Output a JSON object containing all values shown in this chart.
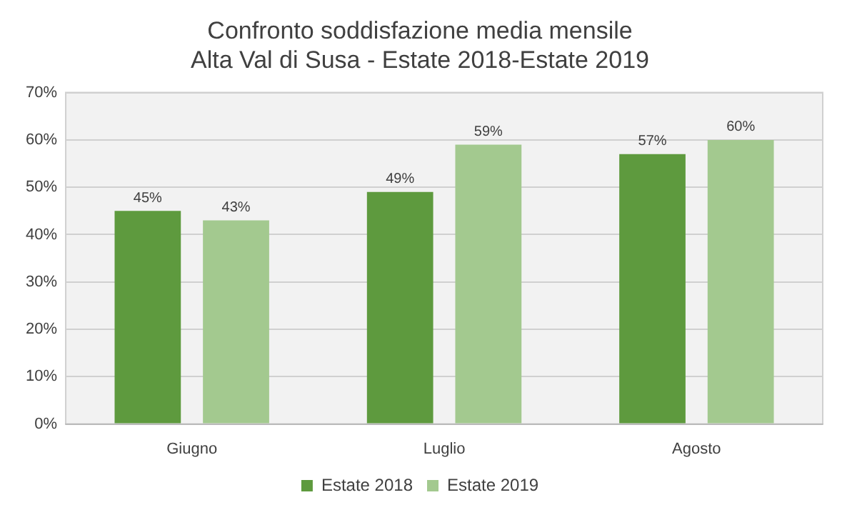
{
  "chart_data": {
    "type": "bar",
    "title": "Confronto soddisfazione media mensile\nAlta Val di Susa - Estate 2018-Estate 2019",
    "categories": [
      "Giugno",
      "Luglio",
      "Agosto"
    ],
    "series": [
      {
        "name": "Estate 2018",
        "color": "#5e9a3e",
        "values": [
          45,
          49,
          57
        ],
        "value_labels": [
          "45%",
          "49%",
          "57%"
        ]
      },
      {
        "name": "Estate 2019",
        "color": "#a3c98f",
        "values": [
          43,
          59,
          60
        ],
        "value_labels": [
          "43%",
          "59%",
          "60%"
        ]
      }
    ],
    "ylim": [
      0,
      70
    ],
    "yticks": [
      {
        "value": 0,
        "label": "0%"
      },
      {
        "value": 10,
        "label": "10%"
      },
      {
        "value": 20,
        "label": "20%"
      },
      {
        "value": 30,
        "label": "30%"
      },
      {
        "value": 40,
        "label": "40%"
      },
      {
        "value": 50,
        "label": "50%"
      },
      {
        "value": 60,
        "label": "60%"
      },
      {
        "value": 70,
        "label": "70%"
      }
    ],
    "grid": "y",
    "legend": "bottom"
  }
}
